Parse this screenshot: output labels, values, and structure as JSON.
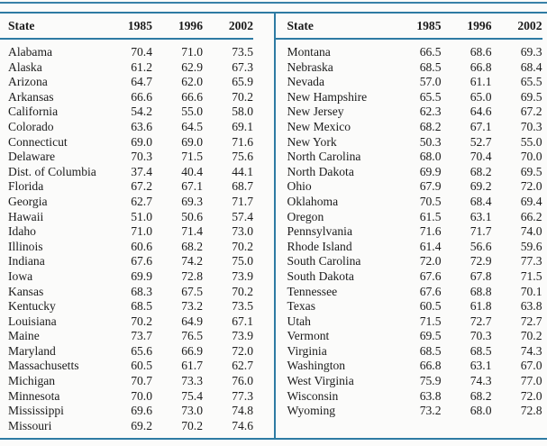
{
  "colors": {
    "rule_teal": "#2e7ba3",
    "text": "#1b1b1b",
    "background": "#fbfbfa"
  },
  "table": {
    "columns": [
      "State",
      "1985",
      "1996",
      "2002"
    ],
    "left_rows": [
      {
        "state": "Alabama",
        "values": [
          "70.4",
          "71.0",
          "73.5"
        ]
      },
      {
        "state": "Alaska",
        "values": [
          "61.2",
          "62.9",
          "67.3"
        ]
      },
      {
        "state": "Arizona",
        "values": [
          "64.7",
          "62.0",
          "65.9"
        ]
      },
      {
        "state": "Arkansas",
        "values": [
          "66.6",
          "66.6",
          "70.2"
        ]
      },
      {
        "state": "California",
        "values": [
          "54.2",
          "55.0",
          "58.0"
        ]
      },
      {
        "state": "Colorado",
        "values": [
          "63.6",
          "64.5",
          "69.1"
        ]
      },
      {
        "state": "Connecticut",
        "values": [
          "69.0",
          "69.0",
          "71.6"
        ]
      },
      {
        "state": "Delaware",
        "values": [
          "70.3",
          "71.5",
          "75.6"
        ]
      },
      {
        "state": "Dist. of Columbia",
        "values": [
          "37.4",
          "40.4",
          "44.1"
        ]
      },
      {
        "state": "Florida",
        "values": [
          "67.2",
          "67.1",
          "68.7"
        ]
      },
      {
        "state": "Georgia",
        "values": [
          "62.7",
          "69.3",
          "71.7"
        ]
      },
      {
        "state": "Hawaii",
        "values": [
          "51.0",
          "50.6",
          "57.4"
        ]
      },
      {
        "state": "Idaho",
        "values": [
          "71.0",
          "71.4",
          "73.0"
        ]
      },
      {
        "state": "Illinois",
        "values": [
          "60.6",
          "68.2",
          "70.2"
        ]
      },
      {
        "state": "Indiana",
        "values": [
          "67.6",
          "74.2",
          "75.0"
        ]
      },
      {
        "state": "Iowa",
        "values": [
          "69.9",
          "72.8",
          "73.9"
        ]
      },
      {
        "state": "Kansas",
        "values": [
          "68.3",
          "67.5",
          "70.2"
        ]
      },
      {
        "state": "Kentucky",
        "values": [
          "68.5",
          "73.2",
          "73.5"
        ]
      },
      {
        "state": "Louisiana",
        "values": [
          "70.2",
          "64.9",
          "67.1"
        ]
      },
      {
        "state": "Maine",
        "values": [
          "73.7",
          "76.5",
          "73.9"
        ]
      },
      {
        "state": "Maryland",
        "values": [
          "65.6",
          "66.9",
          "72.0"
        ]
      },
      {
        "state": "Massachusetts",
        "values": [
          "60.5",
          "61.7",
          "62.7"
        ]
      },
      {
        "state": "Michigan",
        "values": [
          "70.7",
          "73.3",
          "76.0"
        ]
      },
      {
        "state": "Minnesota",
        "values": [
          "70.0",
          "75.4",
          "77.3"
        ]
      },
      {
        "state": "Mississippi",
        "values": [
          "69.6",
          "73.0",
          "74.8"
        ]
      },
      {
        "state": "Missouri",
        "values": [
          "69.2",
          "70.2",
          "74.6"
        ]
      }
    ],
    "right_rows": [
      {
        "state": "Montana",
        "values": [
          "66.5",
          "68.6",
          "69.3"
        ]
      },
      {
        "state": "Nebraska",
        "values": [
          "68.5",
          "66.8",
          "68.4"
        ]
      },
      {
        "state": "Nevada",
        "values": [
          "57.0",
          "61.1",
          "65.5"
        ]
      },
      {
        "state": "New Hampshire",
        "values": [
          "65.5",
          "65.0",
          "69.5"
        ]
      },
      {
        "state": "New Jersey",
        "values": [
          "62.3",
          "64.6",
          "67.2"
        ]
      },
      {
        "state": "New Mexico",
        "values": [
          "68.2",
          "67.1",
          "70.3"
        ]
      },
      {
        "state": "New York",
        "values": [
          "50.3",
          "52.7",
          "55.0"
        ]
      },
      {
        "state": "North Carolina",
        "values": [
          "68.0",
          "70.4",
          "70.0"
        ]
      },
      {
        "state": "North Dakota",
        "values": [
          "69.9",
          "68.2",
          "69.5"
        ]
      },
      {
        "state": "Ohio",
        "values": [
          "67.9",
          "69.2",
          "72.0"
        ]
      },
      {
        "state": "Oklahoma",
        "values": [
          "70.5",
          "68.4",
          "69.4"
        ]
      },
      {
        "state": "Oregon",
        "values": [
          "61.5",
          "63.1",
          "66.2"
        ]
      },
      {
        "state": "Pennsylvania",
        "values": [
          "71.6",
          "71.7",
          "74.0"
        ]
      },
      {
        "state": "Rhode Island",
        "values": [
          "61.4",
          "56.6",
          "59.6"
        ]
      },
      {
        "state": "South Carolina",
        "values": [
          "72.0",
          "72.9",
          "77.3"
        ]
      },
      {
        "state": "South Dakota",
        "values": [
          "67.6",
          "67.8",
          "71.5"
        ]
      },
      {
        "state": "Tennessee",
        "values": [
          "67.6",
          "68.8",
          "70.1"
        ]
      },
      {
        "state": "Texas",
        "values": [
          "60.5",
          "61.8",
          "63.8"
        ]
      },
      {
        "state": "Utah",
        "values": [
          "71.5",
          "72.7",
          "72.7"
        ]
      },
      {
        "state": "Vermont",
        "values": [
          "69.5",
          "70.3",
          "70.2"
        ]
      },
      {
        "state": "Virginia",
        "values": [
          "68.5",
          "68.5",
          "74.3"
        ]
      },
      {
        "state": "Washington",
        "values": [
          "66.8",
          "63.1",
          "67.0"
        ]
      },
      {
        "state": "West Virginia",
        "values": [
          "75.9",
          "74.3",
          "77.0"
        ]
      },
      {
        "state": "Wisconsin",
        "values": [
          "63.8",
          "68.2",
          "72.0"
        ]
      },
      {
        "state": "Wyoming",
        "values": [
          "73.2",
          "68.0",
          "72.8"
        ]
      }
    ]
  }
}
